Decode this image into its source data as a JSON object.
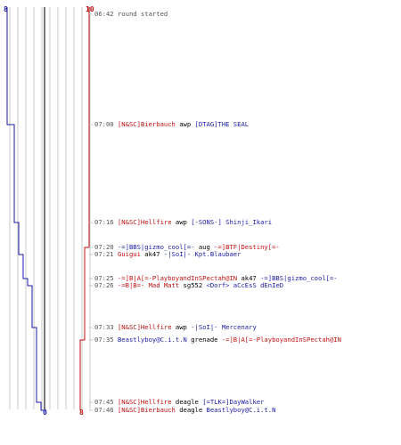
{
  "counts": {
    "blue_top": "8",
    "red_top": "10",
    "blue_bottom": "0",
    "red_bottom": "8"
  },
  "colors": {
    "blue_team": "#1a1aa8",
    "red_team": "#c01010",
    "grid": "#c8c8c8",
    "center_line": "#777777",
    "timestamp": "#555555"
  },
  "events": [
    {
      "time": "06:42",
      "text": "round started"
    },
    {
      "time": "07:00",
      "killer": "[N&SC]Bierbauch",
      "weapon": "awp",
      "victim": "[DTAG]THE SEAL",
      "killer_team": "red",
      "victim_team": "blue"
    },
    {
      "time": "07:16",
      "killer": "[N&SC]Hellfire",
      "weapon": "awp",
      "victim": "[-SONS-] Shinji_Ikari",
      "killer_team": "red",
      "victim_team": "blue"
    },
    {
      "time": "07:20",
      "killer": "-=]BBS|gizmo_cool[=-",
      "weapon": "aug",
      "victim": "-=]BTF|Destiny[=-",
      "killer_team": "blue",
      "victim_team": "red"
    },
    {
      "time": "07:21",
      "killer": "Guigui",
      "weapon": "ak47",
      "victim": "-|SoI|- Kpt.Blaubaer",
      "killer_team": "red",
      "victim_team": "blue"
    },
    {
      "time": "07:25",
      "killer": "-=]B|A[=-PlayboyandInSPectah@IN",
      "weapon": "ak47",
      "victim": "-=]BBS|gizmo_cool[=-",
      "killer_team": "red",
      "victim_team": "blue"
    },
    {
      "time": "07:26",
      "killer": "-=B|B=- Mad Matt",
      "weapon": "sg552",
      "victim": "<Dorf> aCcEsS dEnIeD",
      "killer_team": "red",
      "victim_team": "blue"
    },
    {
      "time": "07:33",
      "killer": "[N&SC]Hellfire",
      "weapon": "awp",
      "victim": "-|SoI|- Mercenary",
      "killer_team": "red",
      "victim_team": "blue"
    },
    {
      "time": "07:35",
      "killer": "Beastlyboy@C.i.t.N",
      "weapon": "grenade",
      "victim": "-=]B|A[=-PlayboyandInSPectah@IN",
      "killer_team": "blue",
      "victim_team": "red"
    },
    {
      "time": "07:45",
      "killer": "[N&SC]Hellfire",
      "weapon": "deagle",
      "victim": "[=TLK=]DayWalker",
      "killer_team": "red",
      "victim_team": "blue"
    },
    {
      "time": "07:46",
      "killer": "[N&SC]Bierbauch",
      "weapon": "deagle",
      "victim": "Beastlyboy@C.i.t.N",
      "killer_team": "red",
      "victim_team": "blue"
    }
  ]
}
